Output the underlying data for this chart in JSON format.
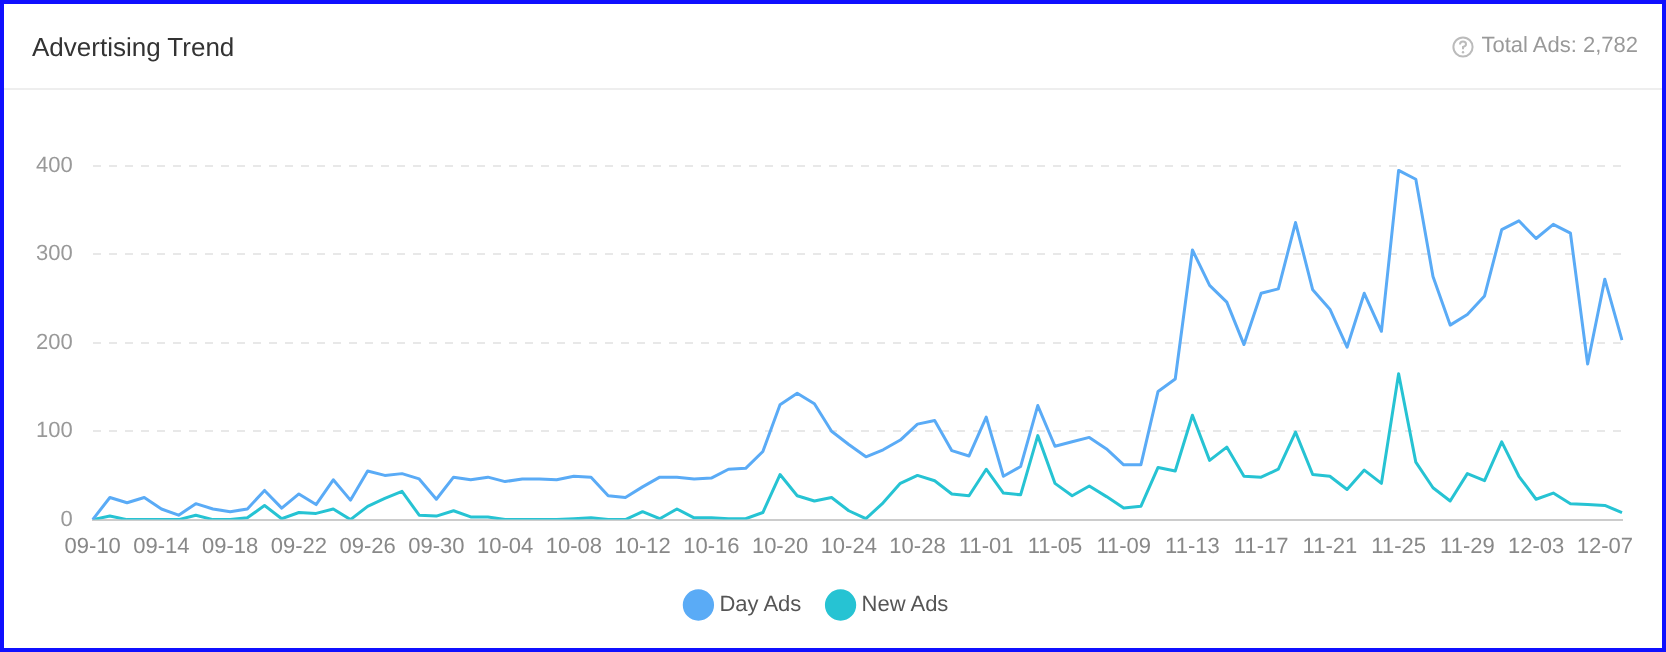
{
  "chart_data": {
    "type": "line",
    "title": "Advertising Trend",
    "annotations": [
      "Total Ads: 2,782"
    ],
    "categories": [
      "09-10",
      null,
      null,
      null,
      "09-14",
      null,
      null,
      null,
      "09-18",
      null,
      null,
      null,
      "09-22",
      null,
      null,
      null,
      "09-26",
      null,
      null,
      null,
      "09-30",
      null,
      null,
      null,
      "10-04",
      null,
      null,
      null,
      "10-08",
      null,
      null,
      null,
      "10-12",
      null,
      null,
      null,
      "10-16",
      null,
      null,
      null,
      "10-20",
      null,
      null,
      null,
      "10-24",
      null,
      null,
      null,
      "10-28",
      null,
      null,
      null,
      "11-01",
      null,
      null,
      null,
      "11-05",
      null,
      null,
      null,
      "11-09",
      null,
      null,
      null,
      "11-13",
      null,
      null,
      null,
      "11-17",
      null,
      null,
      null,
      "11-21",
      null,
      null,
      null,
      "11-25",
      null,
      null,
      null,
      "11-29",
      null,
      null,
      null,
      "12-03",
      null,
      null,
      null,
      "12-07",
      null
    ],
    "series": [
      {
        "name": "Day Ads",
        "color": "#5aabf6",
        "values": [
          0,
          25,
          19,
          25,
          12,
          5,
          18,
          12,
          9,
          12,
          33,
          13,
          29,
          17,
          45,
          22,
          55,
          50,
          52,
          46,
          23,
          48,
          45,
          48,
          43,
          46,
          46,
          45,
          49,
          48,
          27,
          25,
          37,
          48,
          48,
          46,
          47,
          57,
          58,
          77,
          130,
          143,
          131,
          100,
          85,
          71,
          79,
          90,
          108,
          112,
          78,
          72,
          116,
          49,
          60,
          129,
          83,
          88,
          93,
          80,
          62,
          62,
          145,
          159,
          305,
          265,
          246,
          198,
          256,
          261,
          336,
          260,
          238,
          195,
          256,
          213,
          395,
          385,
          275,
          220,
          232,
          253,
          328,
          338,
          318,
          334,
          324,
          176,
          272,
          203
        ]
      },
      {
        "name": "New Ads",
        "color": "#26c3d3",
        "values": [
          0,
          4,
          0,
          0,
          0,
          0,
          5,
          0,
          0,
          2,
          16,
          1,
          8,
          7,
          12,
          0,
          15,
          24,
          32,
          5,
          4,
          10,
          3,
          3,
          0,
          0,
          0,
          0,
          1,
          2,
          0,
          0,
          9,
          1,
          12,
          2,
          2,
          1,
          1,
          8,
          51,
          27,
          21,
          25,
          10,
          1,
          19,
          41,
          50,
          44,
          29,
          27,
          57,
          30,
          28,
          95,
          41,
          27,
          38,
          26,
          13,
          15,
          59,
          55,
          118,
          67,
          82,
          49,
          48,
          57,
          99,
          51,
          49,
          34,
          56,
          41,
          165,
          65,
          36,
          21,
          52,
          44,
          88,
          49,
          23,
          30,
          18,
          17,
          16,
          8
        ]
      }
    ],
    "ylim": [
      0,
      400
    ],
    "yticks": [
      0,
      100,
      200,
      300,
      400
    ],
    "grid": "y",
    "legend": "bottom",
    "marker": "none",
    "line_style": "solid"
  }
}
